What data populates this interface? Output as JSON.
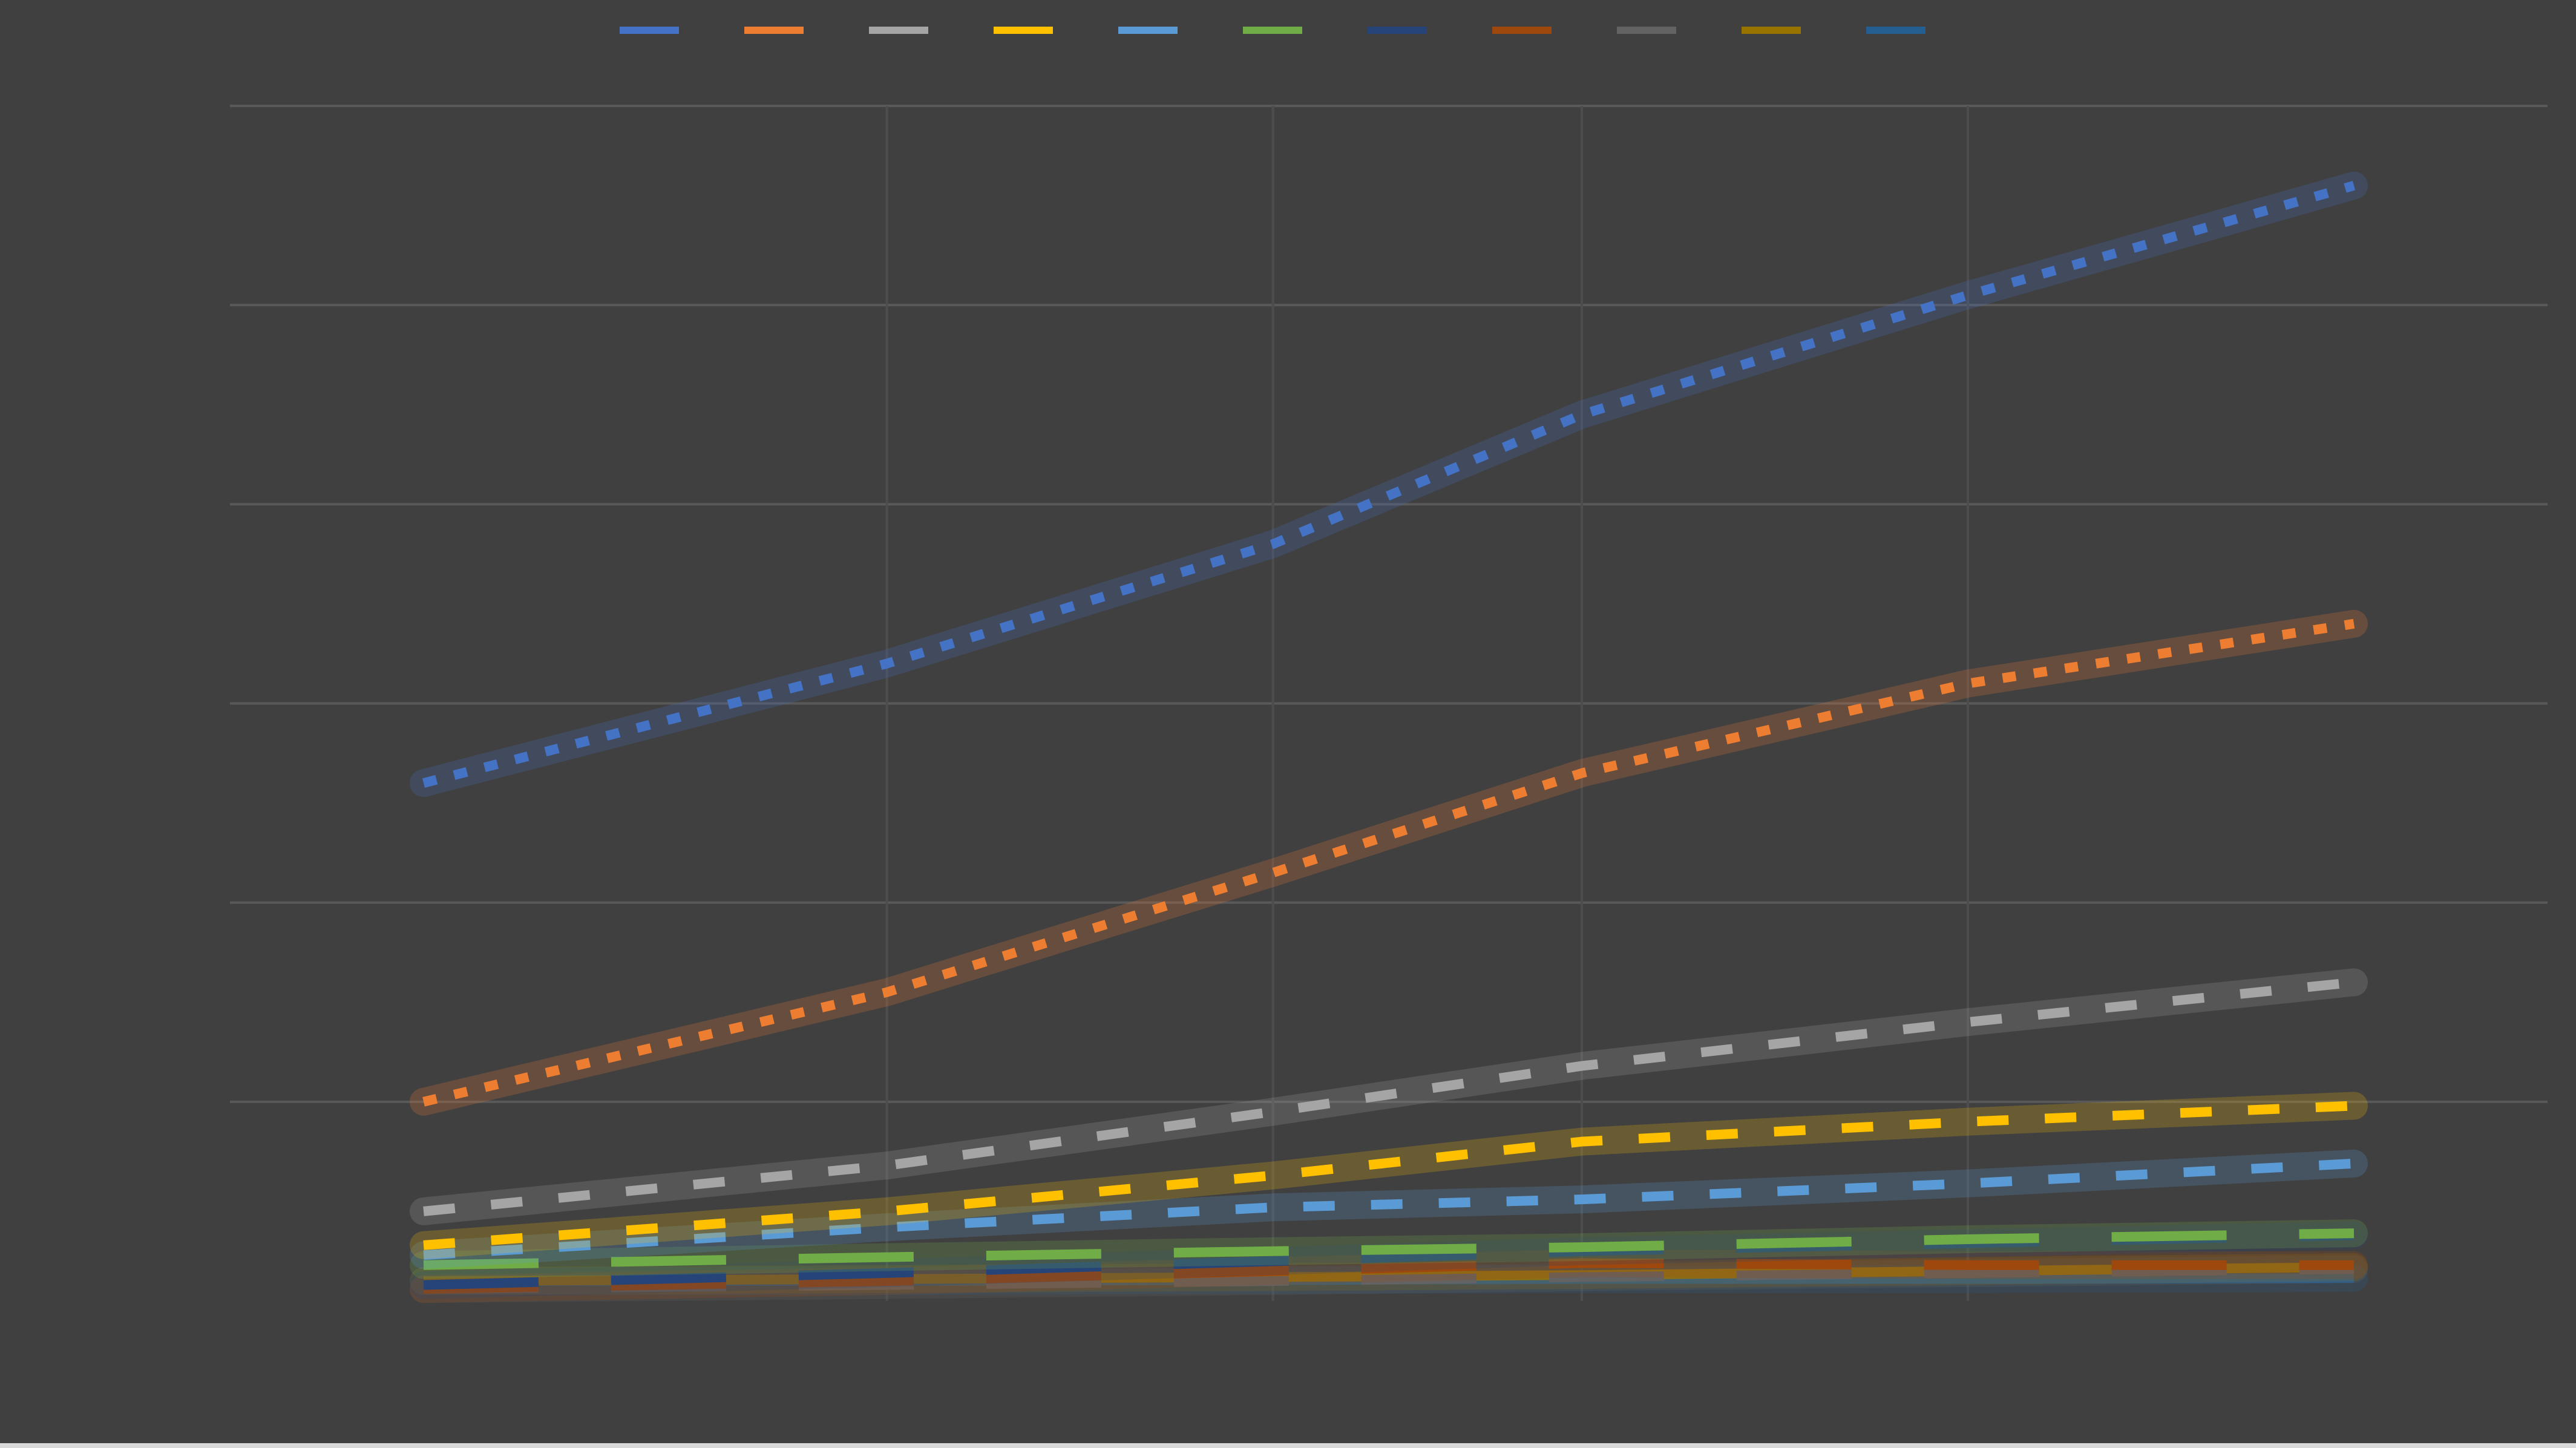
{
  "chart_data": {
    "type": "line",
    "title": "",
    "xlabel": "",
    "ylabel": "",
    "x": [
      0,
      6,
      11,
      15,
      20,
      25
    ],
    "xticks": [
      "",
      "",
      "",
      "",
      "",
      ""
    ],
    "ylim": [
      0,
      6000
    ],
    "yticks": [
      0,
      1000,
      2000,
      3000,
      4000,
      5000,
      6000
    ],
    "ytick_labels": [
      "",
      "",
      "",
      "",
      "",
      "",
      ""
    ],
    "grid": true,
    "legend_position": "top",
    "series": [
      {
        "name": "",
        "color": "#4472c4",
        "dash": "dotted",
        "values": [
          2600,
          3200,
          3800,
          4450,
          5050,
          5600
        ]
      },
      {
        "name": "",
        "color": "#ed7d31",
        "dash": "dotted",
        "values": [
          1000,
          1550,
          2150,
          2650,
          3100,
          3400
        ]
      },
      {
        "name": "",
        "color": "#a5a5a5",
        "dash": "dashed",
        "values": [
          450,
          680,
          950,
          1180,
          1400,
          1600
        ]
      },
      {
        "name": "",
        "color": "#ffc000",
        "dash": "dashed",
        "values": [
          280,
          450,
          630,
          800,
          900,
          980
        ]
      },
      {
        "name": "",
        "color": "#5b9bd5",
        "dash": "dashed",
        "values": [
          230,
          370,
          470,
          510,
          590,
          690
        ]
      },
      {
        "name": "",
        "color": "#70ad47",
        "dash": "long-dash",
        "values": [
          180,
          220,
          250,
          270,
          310,
          340
        ]
      },
      {
        "name": "",
        "color": "#264478",
        "dash": "long-dash",
        "values": [
          80,
          140,
          200,
          250,
          290,
          330
        ]
      },
      {
        "name": "",
        "color": "#9e480e",
        "dash": "long-dash",
        "values": [
          60,
          100,
          150,
          190,
          180,
          180
        ]
      },
      {
        "name": "",
        "color": "#636363",
        "dash": "long-dash",
        "values": [
          60,
          80,
          100,
          120,
          140,
          160
        ]
      },
      {
        "name": "",
        "color": "#997300",
        "dash": "solid",
        "values": [
          100,
          110,
          120,
          130,
          150,
          170
        ]
      },
      {
        "name": "",
        "color": "#255e91",
        "dash": "solid",
        "values": [
          100,
          100,
          105,
          110,
          110,
          115
        ]
      }
    ]
  },
  "legend": {
    "items": [
      {
        "label": "",
        "color": "#4472c4"
      },
      {
        "label": "",
        "color": "#ed7d31"
      },
      {
        "label": "",
        "color": "#a5a5a5"
      },
      {
        "label": "",
        "color": "#ffc000"
      },
      {
        "label": "",
        "color": "#5b9bd5"
      },
      {
        "label": "",
        "color": "#70ad47"
      },
      {
        "label": "",
        "color": "#264478"
      },
      {
        "label": "",
        "color": "#9e480e"
      },
      {
        "label": "",
        "color": "#636363"
      },
      {
        "label": "",
        "color": "#997300"
      },
      {
        "label": "",
        "color": "#255e91"
      }
    ]
  },
  "colors": {
    "background": "#404040",
    "gridline": "#595959",
    "text": "#d9d9d9"
  }
}
